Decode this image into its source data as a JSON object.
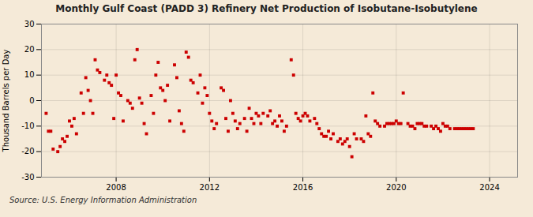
{
  "chart_data": {
    "type": "scatter",
    "title": "Monthly Gulf Coast (PADD 3) Refinery Net Production of Isobutane-Isobutylene",
    "ylabel": "Thousand Barrels per Day",
    "source": "Source: U.S. Energy Information Administration",
    "color": "#cc0000",
    "marker": "square",
    "grid": true,
    "xlim": [
      2004.8,
      2025.2
    ],
    "xticks": [
      2008,
      2012,
      2016,
      2020,
      2024
    ],
    "ylim": [
      -30,
      30
    ],
    "yticks": [
      -30,
      -20,
      -10,
      0,
      10,
      20,
      30
    ],
    "x": [
      2005.0,
      2005.1,
      2005.2,
      2005.3,
      2005.5,
      2005.6,
      2005.7,
      2005.8,
      2005.9,
      2006.0,
      2006.1,
      2006.2,
      2006.3,
      2006.5,
      2006.6,
      2006.7,
      2006.8,
      2006.9,
      2007.0,
      2007.1,
      2007.2,
      2007.3,
      2007.5,
      2007.6,
      2007.7,
      2007.8,
      2007.9,
      2008.0,
      2008.1,
      2008.2,
      2008.3,
      2008.5,
      2008.6,
      2008.7,
      2008.8,
      2008.9,
      2009.0,
      2009.1,
      2009.2,
      2009.3,
      2009.5,
      2009.6,
      2009.7,
      2009.8,
      2009.9,
      2010.0,
      2010.1,
      2010.2,
      2010.3,
      2010.5,
      2010.6,
      2010.7,
      2010.8,
      2010.9,
      2011.0,
      2011.1,
      2011.2,
      2011.3,
      2011.5,
      2011.6,
      2011.7,
      2011.8,
      2011.9,
      2012.0,
      2012.1,
      2012.2,
      2012.3,
      2012.5,
      2012.6,
      2012.7,
      2012.8,
      2012.9,
      2013.0,
      2013.1,
      2013.2,
      2013.3,
      2013.5,
      2013.6,
      2013.7,
      2013.8,
      2013.9,
      2014.0,
      2014.1,
      2014.2,
      2014.3,
      2014.5,
      2014.6,
      2014.7,
      2014.8,
      2014.9,
      2015.0,
      2015.1,
      2015.2,
      2015.3,
      2015.5,
      2015.6,
      2015.7,
      2015.8,
      2015.9,
      2016.0,
      2016.1,
      2016.2,
      2016.3,
      2016.5,
      2016.6,
      2016.7,
      2016.8,
      2016.9,
      2017.0,
      2017.1,
      2017.2,
      2017.3,
      2017.5,
      2017.6,
      2017.7,
      2017.8,
      2017.9,
      2018.0,
      2018.1,
      2018.2,
      2018.3,
      2018.5,
      2018.6,
      2018.7,
      2018.8,
      2018.9,
      2019.0,
      2019.1,
      2019.2,
      2019.3,
      2019.5,
      2019.6,
      2019.7,
      2019.8,
      2019.9,
      2020.0,
      2020.1,
      2020.2,
      2020.3,
      2020.5,
      2020.6,
      2020.7,
      2020.8,
      2020.9,
      2021.0,
      2021.1,
      2021.2,
      2021.3,
      2021.5,
      2021.6,
      2021.7,
      2021.8,
      2021.9,
      2022.0,
      2022.1,
      2022.2,
      2022.3,
      2022.5,
      2022.6,
      2022.7,
      2022.8,
      2022.9,
      2023.0,
      2023.1,
      2023.2,
      2023.3
    ],
    "values": [
      -5,
      -12,
      -12,
      -19,
      -20,
      -18,
      -15,
      -16,
      -14,
      -8,
      -10,
      -7,
      -13,
      3,
      -5,
      9,
      4,
      0,
      -5,
      16,
      12,
      11,
      8,
      10,
      7,
      6,
      -7,
      10,
      3,
      2,
      -8,
      0,
      -1,
      -3,
      16,
      20,
      1,
      -1,
      -9,
      -13,
      2,
      -5,
      10,
      15,
      5,
      4,
      0,
      6,
      -8,
      14,
      9,
      -4,
      -9,
      -12,
      19,
      17,
      8,
      7,
      3,
      10,
      -1,
      5,
      2,
      -5,
      -8,
      -11,
      -9,
      5,
      4,
      -7,
      -12,
      0,
      -5,
      -8,
      -11,
      -9,
      -7,
      -12,
      -3,
      -7,
      -9,
      -5,
      -6,
      -9,
      -5,
      -6,
      -4,
      -9,
      -8,
      -10,
      -6,
      -8,
      -12,
      -10,
      16,
      10,
      -5,
      -7,
      -8,
      -6,
      -5,
      -6,
      -8,
      -7,
      -9,
      -11,
      -13,
      -14,
      -14,
      -12,
      -15,
      -13,
      -16,
      -15,
      -17,
      -16,
      -15,
      -18,
      -22,
      -13,
      -15,
      -15,
      -16,
      -6,
      -13,
      -14,
      3,
      -8,
      -9,
      -10,
      -10,
      -9,
      -9,
      -9,
      -9,
      -8,
      -9,
      -9,
      3,
      -9,
      -10,
      -10,
      -11,
      -9,
      -9,
      -9,
      -10,
      -10,
      -10,
      -11,
      -10,
      -11,
      -12,
      -9,
      -10,
      -10,
      -11,
      -11,
      -11,
      -11,
      -11,
      -11,
      -11,
      -11,
      -11,
      -11
    ]
  }
}
